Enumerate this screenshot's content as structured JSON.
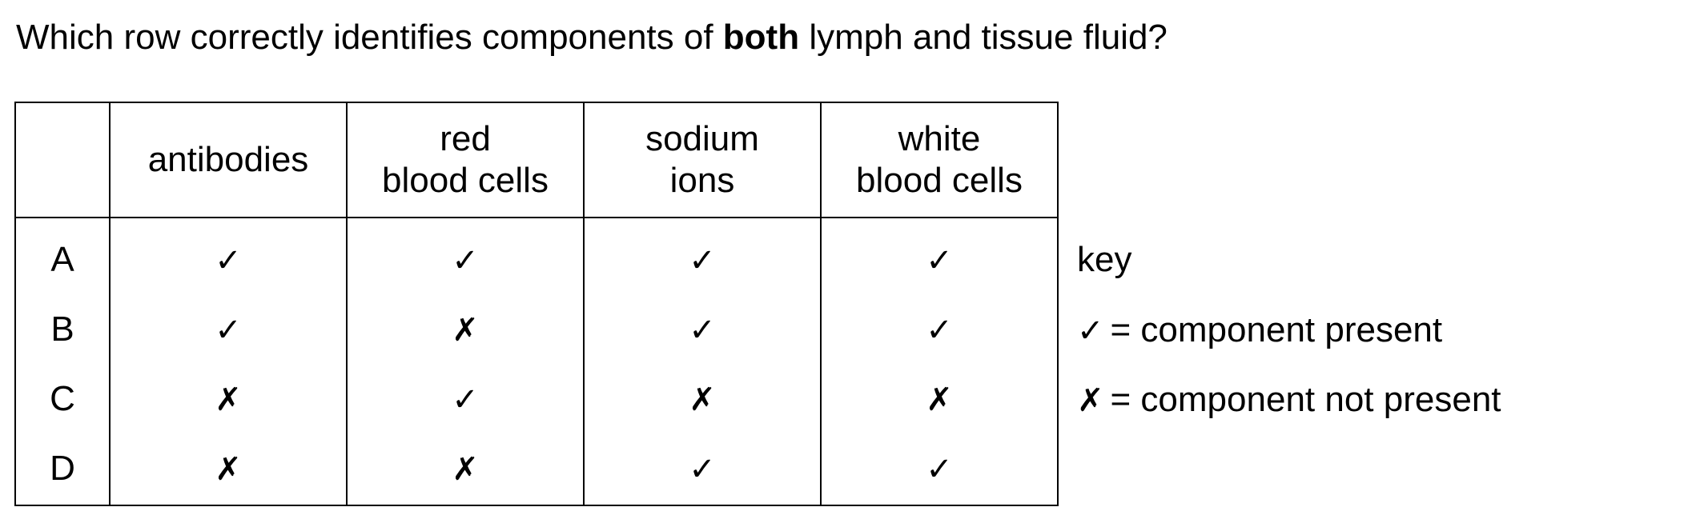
{
  "question": {
    "before_bold": "Which row correctly identifies components of ",
    "bold": "both",
    "after_bold": " lymph and tissue fluid?"
  },
  "table": {
    "headers": [
      [
        "antibodies"
      ],
      [
        "red",
        "blood cells"
      ],
      [
        "sodium",
        "ions"
      ],
      [
        "white",
        "blood cells"
      ]
    ],
    "rows": [
      {
        "letter": "A",
        "marks": [
          "✓",
          "✓",
          "✓",
          "✓"
        ]
      },
      {
        "letter": "B",
        "marks": [
          "✓",
          "✗",
          "✓",
          "✓"
        ]
      },
      {
        "letter": "C",
        "marks": [
          "✗",
          "✓",
          "✗",
          "✗"
        ]
      },
      {
        "letter": "D",
        "marks": [
          "✗",
          "✗",
          "✓",
          "✓"
        ]
      }
    ]
  },
  "key": {
    "title": "key",
    "present_symbol": "✓",
    "present_text": "= component present",
    "absent_symbol": "✗",
    "absent_text": "= component not present"
  }
}
